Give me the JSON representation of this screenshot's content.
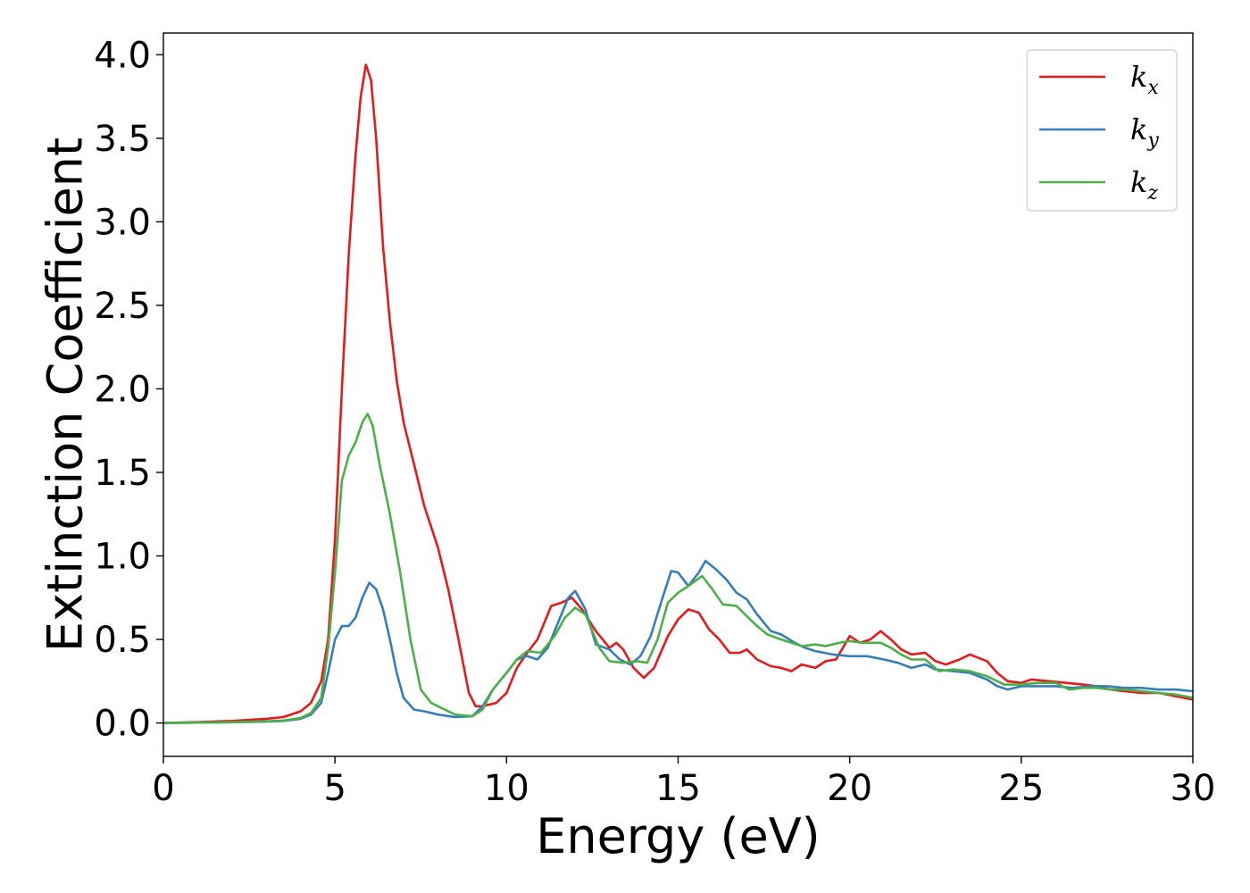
{
  "chart_data": {
    "type": "line",
    "xlabel": "Energy (eV)",
    "ylabel": "Extinction Coefficient",
    "xlim": [
      0,
      30
    ],
    "ylim": [
      -0.2,
      4.13
    ],
    "xticks": [
      0,
      5,
      10,
      15,
      20,
      25,
      30
    ],
    "xtick_labels": [
      "0",
      "5",
      "10",
      "15",
      "20",
      "25",
      "30"
    ],
    "yticks": [
      0.0,
      0.5,
      1.0,
      1.5,
      2.0,
      2.5,
      3.0,
      3.5,
      4.0
    ],
    "ytick_labels": [
      "0.0",
      "0.5",
      "1.0",
      "1.5",
      "2.0",
      "2.5",
      "3.0",
      "3.5",
      "4.0"
    ],
    "grid": false,
    "legend_position": "top-right",
    "series": [
      {
        "name": "k",
        "subscript": "x",
        "color": "#e41a1c",
        "points": [
          [
            0,
            0
          ],
          [
            1,
            0.005
          ],
          [
            2,
            0.012
          ],
          [
            3,
            0.025
          ],
          [
            3.5,
            0.035
          ],
          [
            4,
            0.07
          ],
          [
            4.3,
            0.12
          ],
          [
            4.6,
            0.25
          ],
          [
            4.8,
            0.5
          ],
          [
            5.0,
            1.1
          ],
          [
            5.2,
            2.0
          ],
          [
            5.4,
            2.8
          ],
          [
            5.6,
            3.4
          ],
          [
            5.75,
            3.75
          ],
          [
            5.9,
            3.94
          ],
          [
            6.05,
            3.85
          ],
          [
            6.2,
            3.5
          ],
          [
            6.4,
            2.85
          ],
          [
            6.6,
            2.4
          ],
          [
            6.8,
            2.05
          ],
          [
            7.0,
            1.8
          ],
          [
            7.3,
            1.55
          ],
          [
            7.6,
            1.3
          ],
          [
            8.0,
            1.05
          ],
          [
            8.3,
            0.8
          ],
          [
            8.6,
            0.5
          ],
          [
            8.9,
            0.18
          ],
          [
            9.1,
            0.1
          ],
          [
            9.3,
            0.1
          ],
          [
            9.7,
            0.12
          ],
          [
            10.0,
            0.18
          ],
          [
            10.3,
            0.33
          ],
          [
            10.6,
            0.42
          ],
          [
            10.9,
            0.5
          ],
          [
            11.3,
            0.7
          ],
          [
            11.6,
            0.72
          ],
          [
            11.9,
            0.75
          ],
          [
            12.2,
            0.68
          ],
          [
            12.6,
            0.55
          ],
          [
            13.0,
            0.45
          ],
          [
            13.2,
            0.48
          ],
          [
            13.4,
            0.44
          ],
          [
            13.7,
            0.33
          ],
          [
            14.0,
            0.27
          ],
          [
            14.3,
            0.33
          ],
          [
            14.7,
            0.52
          ],
          [
            15.0,
            0.62
          ],
          [
            15.3,
            0.68
          ],
          [
            15.6,
            0.66
          ],
          [
            15.9,
            0.56
          ],
          [
            16.2,
            0.5
          ],
          [
            16.5,
            0.42
          ],
          [
            16.8,
            0.42
          ],
          [
            17.0,
            0.44
          ],
          [
            17.3,
            0.38
          ],
          [
            17.7,
            0.34
          ],
          [
            18.0,
            0.33
          ],
          [
            18.3,
            0.31
          ],
          [
            18.6,
            0.35
          ],
          [
            19.0,
            0.33
          ],
          [
            19.3,
            0.37
          ],
          [
            19.6,
            0.38
          ],
          [
            20.0,
            0.52
          ],
          [
            20.3,
            0.48
          ],
          [
            20.6,
            0.5
          ],
          [
            20.9,
            0.55
          ],
          [
            21.2,
            0.5
          ],
          [
            21.5,
            0.44
          ],
          [
            21.8,
            0.41
          ],
          [
            22.2,
            0.42
          ],
          [
            22.5,
            0.37
          ],
          [
            22.8,
            0.35
          ],
          [
            23.2,
            0.38
          ],
          [
            23.5,
            0.41
          ],
          [
            24.0,
            0.37
          ],
          [
            24.3,
            0.3
          ],
          [
            24.6,
            0.25
          ],
          [
            25.0,
            0.24
          ],
          [
            25.3,
            0.26
          ],
          [
            25.8,
            0.25
          ],
          [
            26.3,
            0.24
          ],
          [
            26.8,
            0.23
          ],
          [
            27.2,
            0.22
          ],
          [
            27.6,
            0.2
          ],
          [
            28.0,
            0.19
          ],
          [
            28.5,
            0.18
          ],
          [
            29.0,
            0.18
          ],
          [
            29.5,
            0.16
          ],
          [
            30.0,
            0.14
          ]
        ]
      },
      {
        "name": "k",
        "subscript": "y",
        "color": "#377eb8",
        "points": [
          [
            0,
            0
          ],
          [
            1,
            0.002
          ],
          [
            2,
            0.004
          ],
          [
            3,
            0.008
          ],
          [
            3.5,
            0.012
          ],
          [
            4,
            0.025
          ],
          [
            4.3,
            0.05
          ],
          [
            4.6,
            0.12
          ],
          [
            4.8,
            0.3
          ],
          [
            5.0,
            0.5
          ],
          [
            5.2,
            0.58
          ],
          [
            5.4,
            0.58
          ],
          [
            5.6,
            0.63
          ],
          [
            5.8,
            0.75
          ],
          [
            6.0,
            0.84
          ],
          [
            6.2,
            0.8
          ],
          [
            6.4,
            0.68
          ],
          [
            6.6,
            0.5
          ],
          [
            6.8,
            0.3
          ],
          [
            7.0,
            0.15
          ],
          [
            7.3,
            0.08
          ],
          [
            7.6,
            0.07
          ],
          [
            8.0,
            0.05
          ],
          [
            8.5,
            0.035
          ],
          [
            9.0,
            0.04
          ],
          [
            9.3,
            0.1
          ],
          [
            9.6,
            0.2
          ],
          [
            10.0,
            0.3
          ],
          [
            10.3,
            0.38
          ],
          [
            10.6,
            0.4
          ],
          [
            10.9,
            0.38
          ],
          [
            11.2,
            0.45
          ],
          [
            11.5,
            0.6
          ],
          [
            11.8,
            0.75
          ],
          [
            12.0,
            0.79
          ],
          [
            12.3,
            0.68
          ],
          [
            12.6,
            0.47
          ],
          [
            13.0,
            0.44
          ],
          [
            13.3,
            0.38
          ],
          [
            13.6,
            0.35
          ],
          [
            13.9,
            0.4
          ],
          [
            14.2,
            0.52
          ],
          [
            14.5,
            0.72
          ],
          [
            14.8,
            0.91
          ],
          [
            15.0,
            0.9
          ],
          [
            15.3,
            0.82
          ],
          [
            15.6,
            0.9
          ],
          [
            15.8,
            0.97
          ],
          [
            16.1,
            0.92
          ],
          [
            16.4,
            0.86
          ],
          [
            16.7,
            0.78
          ],
          [
            17.0,
            0.74
          ],
          [
            17.3,
            0.65
          ],
          [
            17.7,
            0.55
          ],
          [
            18.0,
            0.53
          ],
          [
            18.4,
            0.48
          ],
          [
            18.7,
            0.45
          ],
          [
            19.0,
            0.43
          ],
          [
            19.5,
            0.41
          ],
          [
            20.0,
            0.4
          ],
          [
            20.5,
            0.4
          ],
          [
            21.0,
            0.38
          ],
          [
            21.4,
            0.36
          ],
          [
            21.8,
            0.33
          ],
          [
            22.2,
            0.35
          ],
          [
            22.5,
            0.32
          ],
          [
            23.0,
            0.31
          ],
          [
            23.5,
            0.3
          ],
          [
            24.0,
            0.26
          ],
          [
            24.3,
            0.22
          ],
          [
            24.6,
            0.2
          ],
          [
            25.0,
            0.22
          ],
          [
            25.5,
            0.22
          ],
          [
            26.0,
            0.22
          ],
          [
            26.5,
            0.21
          ],
          [
            27.0,
            0.22
          ],
          [
            27.5,
            0.22
          ],
          [
            28.0,
            0.21
          ],
          [
            28.5,
            0.21
          ],
          [
            29.0,
            0.2
          ],
          [
            29.5,
            0.2
          ],
          [
            30.0,
            0.19
          ]
        ]
      },
      {
        "name": "k",
        "subscript": "z",
        "color": "#4daf4a",
        "points": [
          [
            0,
            0
          ],
          [
            1,
            0.002
          ],
          [
            2,
            0.005
          ],
          [
            3,
            0.01
          ],
          [
            3.5,
            0.015
          ],
          [
            4,
            0.03
          ],
          [
            4.3,
            0.06
          ],
          [
            4.6,
            0.15
          ],
          [
            4.8,
            0.45
          ],
          [
            5.0,
            0.9
          ],
          [
            5.2,
            1.45
          ],
          [
            5.4,
            1.6
          ],
          [
            5.6,
            1.68
          ],
          [
            5.8,
            1.8
          ],
          [
            5.95,
            1.85
          ],
          [
            6.1,
            1.78
          ],
          [
            6.3,
            1.55
          ],
          [
            6.6,
            1.25
          ],
          [
            6.9,
            0.9
          ],
          [
            7.2,
            0.5
          ],
          [
            7.5,
            0.2
          ],
          [
            7.8,
            0.12
          ],
          [
            8.1,
            0.09
          ],
          [
            8.5,
            0.05
          ],
          [
            9.0,
            0.04
          ],
          [
            9.3,
            0.08
          ],
          [
            9.6,
            0.2
          ],
          [
            10.0,
            0.3
          ],
          [
            10.3,
            0.38
          ],
          [
            10.6,
            0.43
          ],
          [
            11.0,
            0.42
          ],
          [
            11.4,
            0.52
          ],
          [
            11.7,
            0.63
          ],
          [
            12.0,
            0.69
          ],
          [
            12.3,
            0.65
          ],
          [
            12.7,
            0.45
          ],
          [
            13.0,
            0.37
          ],
          [
            13.4,
            0.36
          ],
          [
            13.8,
            0.37
          ],
          [
            14.1,
            0.36
          ],
          [
            14.4,
            0.5
          ],
          [
            14.7,
            0.72
          ],
          [
            15.0,
            0.78
          ],
          [
            15.3,
            0.82
          ],
          [
            15.7,
            0.88
          ],
          [
            16.0,
            0.8
          ],
          [
            16.3,
            0.71
          ],
          [
            16.7,
            0.7
          ],
          [
            17.0,
            0.64
          ],
          [
            17.3,
            0.58
          ],
          [
            17.6,
            0.53
          ],
          [
            18.0,
            0.5
          ],
          [
            18.3,
            0.48
          ],
          [
            18.6,
            0.46
          ],
          [
            19.0,
            0.47
          ],
          [
            19.3,
            0.46
          ],
          [
            19.7,
            0.48
          ],
          [
            20.0,
            0.49
          ],
          [
            20.4,
            0.48
          ],
          [
            20.9,
            0.48
          ],
          [
            21.2,
            0.45
          ],
          [
            21.5,
            0.41
          ],
          [
            21.8,
            0.38
          ],
          [
            22.2,
            0.38
          ],
          [
            22.6,
            0.31
          ],
          [
            23.0,
            0.32
          ],
          [
            23.5,
            0.31
          ],
          [
            24.0,
            0.28
          ],
          [
            24.5,
            0.23
          ],
          [
            25.0,
            0.23
          ],
          [
            25.5,
            0.24
          ],
          [
            26.0,
            0.24
          ],
          [
            26.4,
            0.2
          ],
          [
            26.8,
            0.21
          ],
          [
            27.2,
            0.21
          ],
          [
            27.6,
            0.2
          ],
          [
            28.0,
            0.2
          ],
          [
            28.5,
            0.19
          ],
          [
            29.0,
            0.18
          ],
          [
            29.5,
            0.17
          ],
          [
            30.0,
            0.15
          ]
        ]
      }
    ]
  }
}
